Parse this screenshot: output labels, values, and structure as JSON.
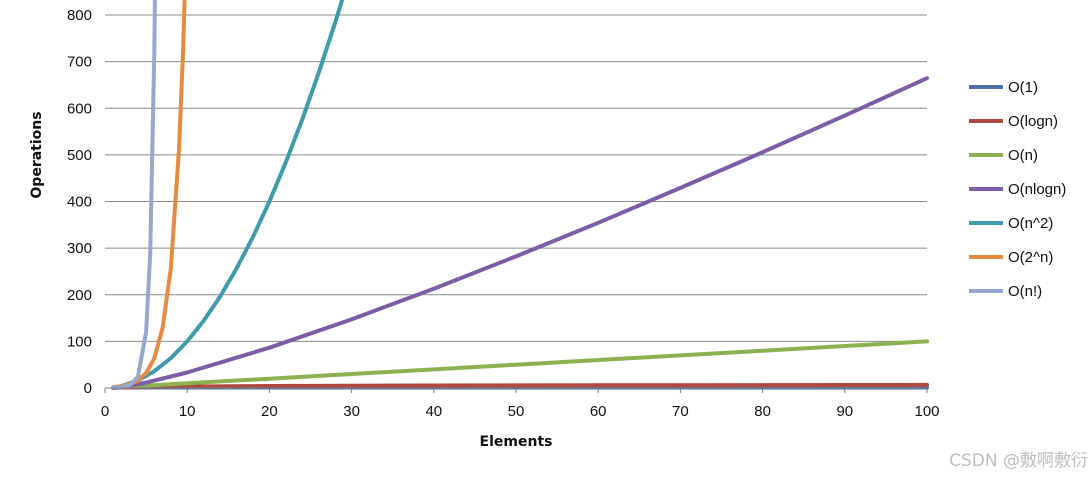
{
  "chart_data": {
    "type": "line",
    "title": "",
    "xlabel": "Elements",
    "ylabel": "Operations",
    "xlim": [
      0,
      100
    ],
    "ylim": [
      0,
      800
    ],
    "xticks": [
      0,
      10,
      20,
      30,
      40,
      50,
      60,
      70,
      80,
      90,
      100
    ],
    "yticks": [
      0,
      100,
      200,
      300,
      400,
      500,
      600,
      700,
      800
    ],
    "grid": "horizontal",
    "legend_position": "right",
    "series": [
      {
        "name": "O(1)",
        "color": "#4a6fa5",
        "x": [
          1,
          10,
          20,
          30,
          40,
          50,
          60,
          70,
          80,
          90,
          100
        ],
        "y": [
          1,
          1,
          1,
          1,
          1,
          1,
          1,
          1,
          1,
          1,
          1
        ]
      },
      {
        "name": "O(logn)",
        "color": "#b0473f",
        "x": [
          1,
          2,
          5,
          10,
          20,
          30,
          40,
          50,
          60,
          70,
          80,
          90,
          100
        ],
        "y": [
          0,
          1,
          2.3,
          3.3,
          4.3,
          4.9,
          5.3,
          5.6,
          5.9,
          6.1,
          6.3,
          6.5,
          6.6
        ]
      },
      {
        "name": "O(n)",
        "color": "#8db151",
        "x": [
          1,
          10,
          20,
          30,
          40,
          50,
          60,
          70,
          80,
          90,
          100
        ],
        "y": [
          1,
          10,
          20,
          30,
          40,
          50,
          60,
          70,
          80,
          90,
          100
        ]
      },
      {
        "name": "O(nlogn)",
        "color": "#7b5ea3",
        "x": [
          1,
          2,
          5,
          10,
          20,
          30,
          40,
          50,
          60,
          70,
          80,
          90,
          100
        ],
        "y": [
          0,
          2,
          11.6,
          33.2,
          86.4,
          147.2,
          212.9,
          282.2,
          354.4,
          429.1,
          505.8,
          584.3,
          664.4
        ]
      },
      {
        "name": "O(n^2)",
        "color": "#3f9aac",
        "x": [
          1,
          2,
          4,
          6,
          8,
          10,
          12,
          14,
          16,
          18,
          20,
          22,
          24,
          26,
          28,
          29,
          30
        ],
        "y": [
          1,
          4,
          16,
          36,
          64,
          100,
          144,
          196,
          256,
          324,
          400,
          484,
          576,
          676,
          784,
          841,
          900
        ]
      },
      {
        "name": "O(2^n)",
        "color": "#e88a3c",
        "x": [
          1,
          2,
          3,
          4,
          5,
          6,
          7,
          8,
          9,
          9.5,
          10
        ],
        "y": [
          2,
          4,
          8,
          16,
          32,
          64,
          128,
          256,
          512,
          724,
          1024
        ]
      },
      {
        "name": "O(n!)",
        "color": "#94a8d0",
        "x": [
          1,
          2,
          3,
          4,
          5,
          5.5,
          6,
          6.3
        ],
        "y": [
          1,
          2,
          6,
          24,
          120,
          287,
          720,
          1200
        ]
      }
    ]
  },
  "watermark": "CSDN @敷啊敷衍"
}
